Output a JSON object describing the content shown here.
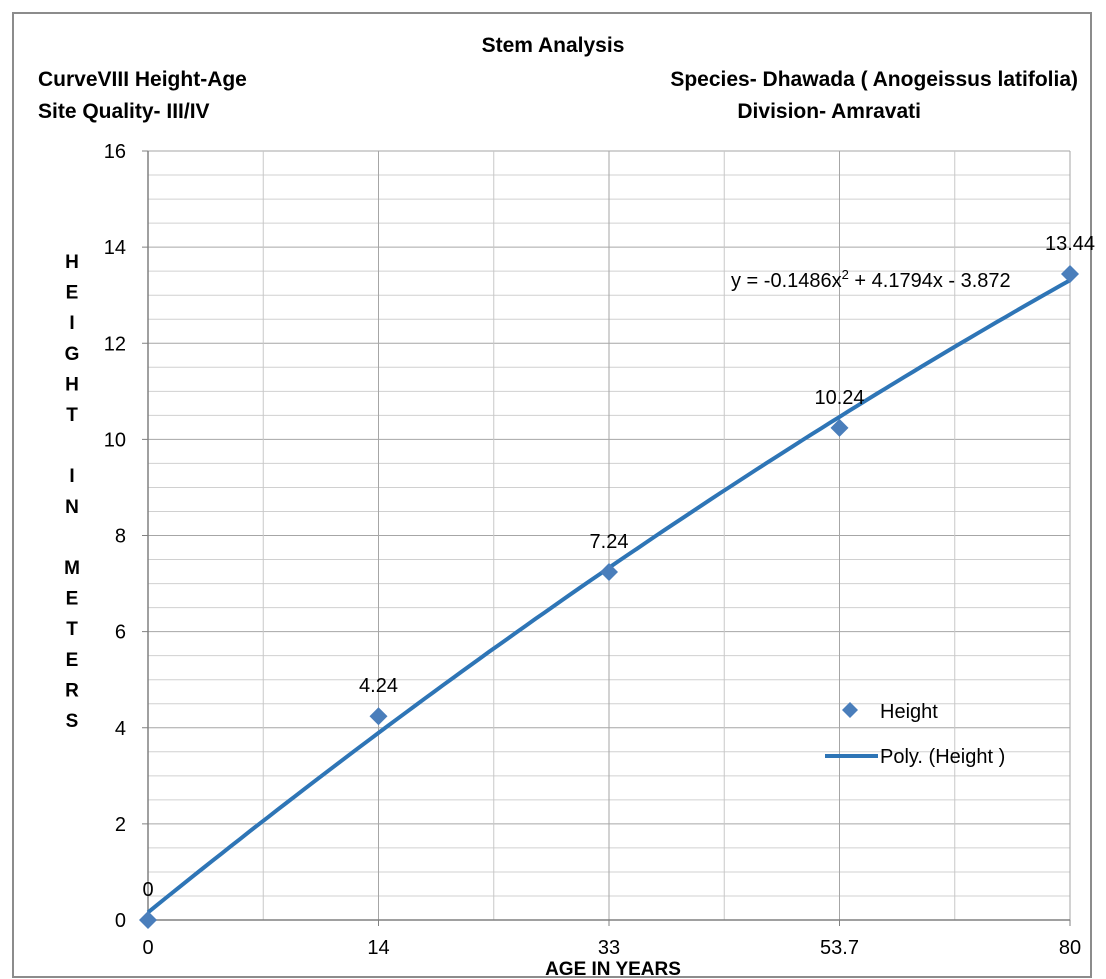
{
  "chart_data": {
    "type": "scatter",
    "title": "Stem Analysis",
    "subtitle_left_1": "CurveVIII  Height-Age",
    "subtitle_left_2": "Site Quality- III/IV",
    "subtitle_right_1": "Species- Dhawada ( Anogeissus latifolia)",
    "subtitle_right_2": "Division- Amravati",
    "xlabel": "AGE IN YEARS",
    "ylabel_letters": [
      "H",
      "E",
      "I",
      "G",
      "H",
      "T",
      "",
      "I",
      "N",
      "",
      "M",
      "E",
      "T",
      "E",
      "R",
      "S"
    ],
    "categories": [
      "0",
      "14",
      "33",
      "53.7",
      "80"
    ],
    "series": [
      {
        "name": "Height",
        "values": [
          0,
          4.24,
          7.24,
          10.24,
          13.44
        ],
        "labels": [
          "0",
          "4.24",
          "7.24",
          "10.24",
          "13.44"
        ],
        "color": "#4a7ebb"
      }
    ],
    "trendline": {
      "name": "Poly. (Height )",
      "type": "polynomial",
      "order": 2,
      "coefficients": [
        -0.1486,
        4.1794,
        -3.872
      ],
      "color": "#2e75b6"
    },
    "equation_label": {
      "prefix": "y = -0.1486x",
      "sup": "2",
      "suffix": " + 4.1794x - 3.872"
    },
    "ylim": [
      0,
      16
    ],
    "y_ticks": [
      0,
      2,
      4,
      6,
      8,
      10,
      12,
      14,
      16
    ],
    "y_minor_step": 0.5,
    "x_minor_per_category": 2,
    "grid": true,
    "legend_position": "right"
  }
}
